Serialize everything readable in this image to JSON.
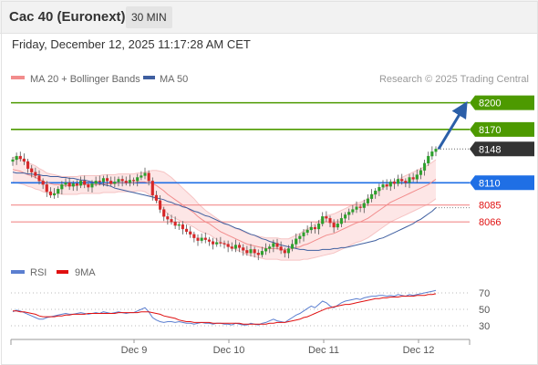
{
  "header": {
    "title": "Cac 40 (Euronext)",
    "interval": "30 MIN",
    "timestamp": "Friday, December 12, 2025 11:17:28 AM CET"
  },
  "legend": {
    "bollinger": "MA 20 + Bollinger Bands",
    "ma50": "MA 50",
    "rsi": "RSI",
    "rsi_ma": "9MA"
  },
  "research": "Research © 2025 Trading Central",
  "colors": {
    "up": "#2ca02c",
    "down": "#d62728",
    "resistance": "#4d9a00",
    "support": "#1f6fe5",
    "bollinger": "#f28c8c",
    "ma50": "#3f5fa0",
    "last": "#333333",
    "arrow": "#2b5fa8"
  },
  "chart_data": [
    {
      "type": "line",
      "title": "",
      "x_ticks": [
        "Dec 9",
        "Dec 10",
        "Dec 11",
        "Dec 12"
      ],
      "ylim": [
        8020,
        8215
      ],
      "levels": [
        {
          "label": "8200",
          "value": 8200,
          "kind": "resistance"
        },
        {
          "label": "8170",
          "value": 8170,
          "kind": "resistance"
        },
        {
          "label": "8148",
          "value": 8148,
          "kind": "last"
        },
        {
          "label": "8110",
          "value": 8110,
          "kind": "pivot"
        },
        {
          "label": "8085",
          "value": 8085,
          "kind": "support"
        },
        {
          "label": "8066",
          "value": 8066,
          "kind": "support"
        }
      ],
      "close": [
        8136,
        8140,
        8137,
        8134,
        8126,
        8122,
        8118,
        8112,
        8108,
        8100,
        8096,
        8098,
        8103,
        8108,
        8110,
        8106,
        8109,
        8107,
        8112,
        8108,
        8105,
        8109,
        8112,
        8111,
        8115,
        8112,
        8109,
        8111,
        8114,
        8112,
        8110,
        8113,
        8112,
        8116,
        8118,
        8121,
        8112,
        8096,
        8090,
        8080,
        8072,
        8069,
        8066,
        8062,
        8063,
        8058,
        8055,
        8052,
        8048,
        8045,
        8048,
        8046,
        8044,
        8041,
        8043,
        8042,
        8041,
        8038,
        8036,
        8040,
        8037,
        8034,
        8031,
        8035,
        8031,
        8029,
        8033,
        8036,
        8038,
        8042,
        8038,
        8034,
        8031,
        8036,
        8041,
        8047,
        8050,
        8054,
        8057,
        8060,
        8058,
        8064,
        8072,
        8070,
        8065,
        8060,
        8064,
        8070,
        8074,
        8077,
        8080,
        8083,
        8082,
        8087,
        8092,
        8097,
        8101,
        8105,
        8108,
        8106,
        8111,
        8109,
        8114,
        8112,
        8110,
        8116,
        8114,
        8119,
        8124,
        8132,
        8140,
        8145,
        8148
      ],
      "ma20": [
        8125,
        8124,
        8123,
        8121,
        8119,
        8118,
        8116,
        8114,
        8112,
        8110,
        8109,
        8108,
        8108,
        8107,
        8107,
        8107,
        8107,
        8107,
        8108,
        8108,
        8108,
        8108,
        8108,
        8108,
        8109,
        8109,
        8109,
        8109,
        8110,
        8110,
        8110,
        8110,
        8110,
        8111,
        8111,
        8111,
        8110,
        8109,
        8107,
        8104,
        8101,
        8097,
        8094,
        8091,
        8088,
        8085,
        8082,
        8079,
        8076,
        8072,
        8069,
        8066,
        8064,
        8061,
        8058,
        8055,
        8053,
        8051,
        8049,
        8047,
        8045,
        8043,
        8041,
        8040,
        8039,
        8038,
        8037,
        8036,
        8036,
        8036,
        8036,
        8035,
        8035,
        8035,
        8036,
        8037,
        8038,
        8040,
        8041,
        8043,
        8045,
        8047,
        8049,
        8051,
        8052,
        8053,
        8055,
        8057,
        8059,
        8061,
        8063,
        8065,
        8066,
        8068,
        8070,
        8073,
        8076,
        8079,
        8082,
        8085,
        8088,
        8090,
        8092,
        8094,
        8096,
        8098,
        8100,
        8102,
        8104,
        8106,
        8108,
        8111,
        8114
      ],
      "bb_width": [
        14,
        14,
        14,
        13,
        13,
        13,
        13,
        12,
        12,
        11,
        11,
        11,
        10,
        10,
        10,
        10,
        10,
        10,
        10,
        10,
        10,
        10,
        10,
        10,
        10,
        10,
        10,
        10,
        10,
        10,
        10,
        10,
        10,
        10,
        10,
        11,
        13,
        15,
        17,
        19,
        21,
        22,
        22,
        21,
        20,
        19,
        18,
        17,
        16,
        15,
        14,
        13,
        12,
        12,
        12,
        12,
        12,
        12,
        12,
        12,
        12,
        12,
        12,
        12,
        12,
        12,
        12,
        12,
        12,
        12,
        12,
        12,
        12,
        12,
        13,
        14,
        15,
        16,
        17,
        18,
        19,
        20,
        21,
        22,
        22,
        22,
        22,
        22,
        22,
        22,
        22,
        22,
        22,
        22,
        22,
        22,
        22,
        22,
        22,
        22,
        22,
        22,
        22,
        22,
        22,
        22,
        22,
        22,
        22,
        22,
        22,
        22,
        22
      ],
      "ma50": [
        8122,
        8121,
        8121,
        8121,
        8120,
        8120,
        8119,
        8119,
        8118,
        8118,
        8117,
        8117,
        8117,
        8116,
        8116,
        8115,
        8115,
        8114,
        8113,
        8113,
        8112,
        8111,
        8110,
        8109,
        8108,
        8107,
        8106,
        8104,
        8103,
        8102,
        8101,
        8100,
        8099,
        8098,
        8097,
        8096,
        8095,
        8094,
        8093,
        8092,
        8091,
        8089,
        8088,
        8086,
        8085,
        8083,
        8082,
        8080,
        8078,
        8077,
        8075,
        8073,
        8072,
        8070,
        8068,
        8066,
        8064,
        8063,
        8061,
        8059,
        8058,
        8056,
        8054,
        8052,
        8051,
        8049,
        8047,
        8046,
        8044,
        8043,
        8041,
        8040,
        8039,
        8038,
        8037,
        8036,
        8035,
        8035,
        8034,
        8034,
        8034,
        8034,
        8035,
        8035,
        8035,
        8036,
        8036,
        8037,
        8037,
        8038,
        8039,
        8040,
        8041,
        8042,
        8043,
        8044,
        8045,
        8047,
        8048,
        8050,
        8052,
        8054,
        8056,
        8058,
        8060,
        8062,
        8064,
        8067,
        8069,
        8072,
        8075,
        8078,
        8082
      ],
      "projection": {
        "from": 8148,
        "to": 8200,
        "label": "8200"
      }
    },
    {
      "type": "line",
      "title": "",
      "x_ticks": [
        "Dec 9",
        "Dec 10",
        "Dec 11",
        "Dec 12"
      ],
      "ylim": [
        20,
        80
      ],
      "y_ticks": [
        70,
        50,
        30
      ],
      "series": [
        {
          "name": "RSI",
          "values": [
            47,
            49,
            48,
            46,
            44,
            42,
            40,
            38,
            38,
            40,
            41,
            42,
            43,
            44,
            45,
            44,
            44,
            45,
            46,
            45,
            44,
            45,
            46,
            45,
            47,
            46,
            45,
            46,
            47,
            46,
            45,
            46,
            46,
            48,
            50,
            52,
            47,
            40,
            37,
            35,
            34,
            35,
            35,
            34,
            35,
            34,
            33,
            33,
            32,
            33,
            34,
            33,
            33,
            32,
            33,
            33,
            32,
            32,
            31,
            33,
            32,
            31,
            31,
            33,
            32,
            31,
            33,
            34,
            36,
            38,
            36,
            35,
            34,
            37,
            40,
            43,
            45,
            48,
            51,
            54,
            52,
            56,
            60,
            58,
            54,
            52,
            55,
            58,
            60,
            61,
            62,
            63,
            62,
            64,
            65,
            66,
            66,
            67,
            67,
            66,
            67,
            66,
            68,
            67,
            66,
            68,
            67,
            68,
            69,
            70,
            71,
            72,
            73
          ]
        },
        {
          "name": "9MA",
          "values": [
            48,
            48,
            47,
            47,
            46,
            45,
            44,
            42,
            41,
            41,
            41,
            41,
            42,
            42,
            43,
            43,
            44,
            44,
            44,
            44,
            45,
            45,
            45,
            45,
            45,
            45,
            45,
            45,
            46,
            46,
            46,
            46,
            46,
            46,
            47,
            47,
            47,
            46,
            45,
            44,
            42,
            41,
            40,
            39,
            37,
            36,
            35,
            35,
            34,
            34,
            34,
            34,
            34,
            33,
            33,
            33,
            33,
            33,
            33,
            33,
            33,
            32,
            32,
            32,
            32,
            32,
            32,
            32,
            33,
            33,
            34,
            34,
            34,
            35,
            36,
            37,
            38,
            40,
            41,
            43,
            45,
            47,
            49,
            51,
            52,
            53,
            54,
            55,
            56,
            56,
            57,
            58,
            59,
            60,
            61,
            62,
            63,
            63,
            64,
            64,
            65,
            65,
            65,
            66,
            66,
            66,
            66,
            67,
            67,
            67,
            68,
            68,
            69
          ]
        }
      ]
    }
  ]
}
